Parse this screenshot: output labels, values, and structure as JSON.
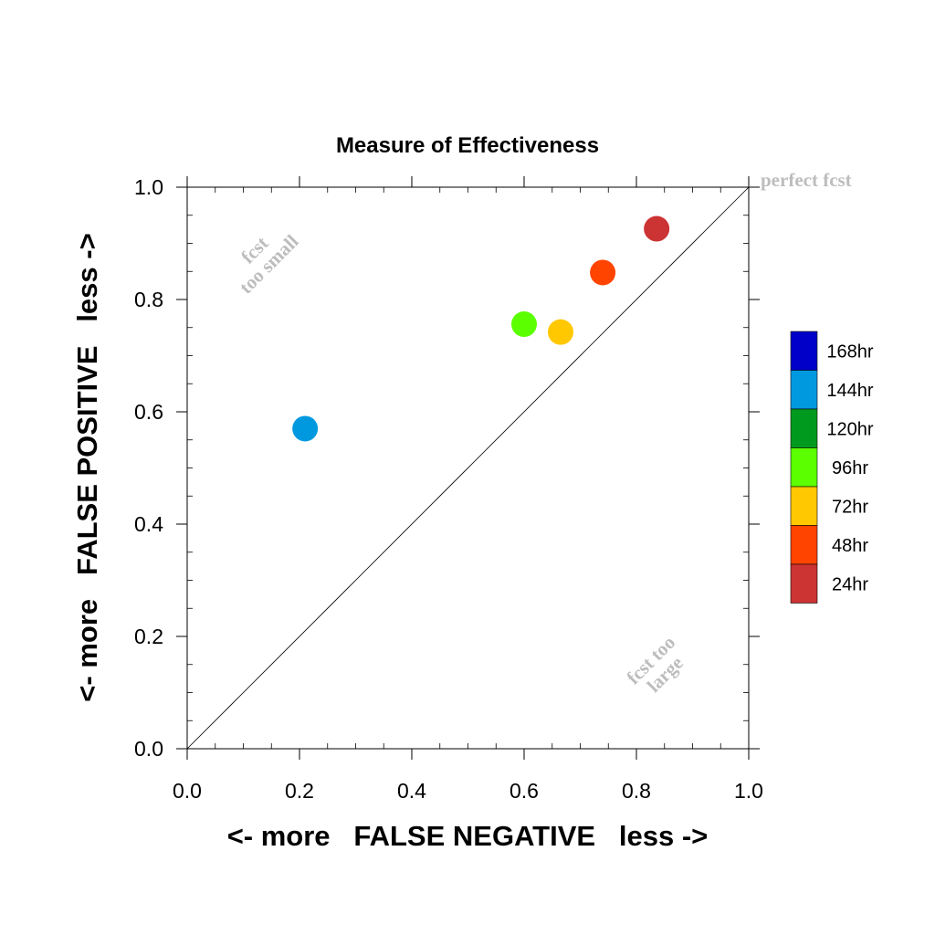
{
  "chart_data": {
    "type": "scatter",
    "title": "Measure of Effectiveness",
    "xlabel": "<- more   FALSE NEGATIVE   less ->",
    "ylabel": "<- more   FALSE POSITIVE   less ->",
    "xlim": [
      0.0,
      1.0
    ],
    "ylim": [
      0.0,
      1.0
    ],
    "x_ticks": [
      "0.0",
      "0.2",
      "0.4",
      "0.6",
      "0.8",
      "1.0"
    ],
    "y_ticks": [
      "0.0",
      "0.2",
      "0.4",
      "0.6",
      "0.8",
      "1.0"
    ],
    "grid": false,
    "diagonal": true,
    "annotations": {
      "perfect": "perfect fcst",
      "too_small_1": "fcst",
      "too_small_2": "too small",
      "too_large_1": "fcst too",
      "too_large_2": "large"
    },
    "legend_position": "right",
    "legend": [
      {
        "label": "168hr",
        "color": "#0000c8"
      },
      {
        "label": "144hr",
        "color": "#0099e0"
      },
      {
        "label": "120hr",
        "color": "#009a1e"
      },
      {
        "label": "96hr",
        "color": "#5cff00"
      },
      {
        "label": "72hr",
        "color": "#ffc800"
      },
      {
        "label": "48hr",
        "color": "#ff4400"
      },
      {
        "label": "24hr",
        "color": "#cc3333"
      }
    ],
    "points": [
      {
        "x": 0.21,
        "y": 0.57,
        "color": "#0099e0"
      },
      {
        "x": 0.6,
        "y": 0.756,
        "color": "#5cff00"
      },
      {
        "x": 0.665,
        "y": 0.742,
        "color": "#ffc800"
      },
      {
        "x": 0.74,
        "y": 0.848,
        "color": "#ff4400"
      },
      {
        "x": 0.836,
        "y": 0.926,
        "color": "#cc3333"
      }
    ]
  }
}
